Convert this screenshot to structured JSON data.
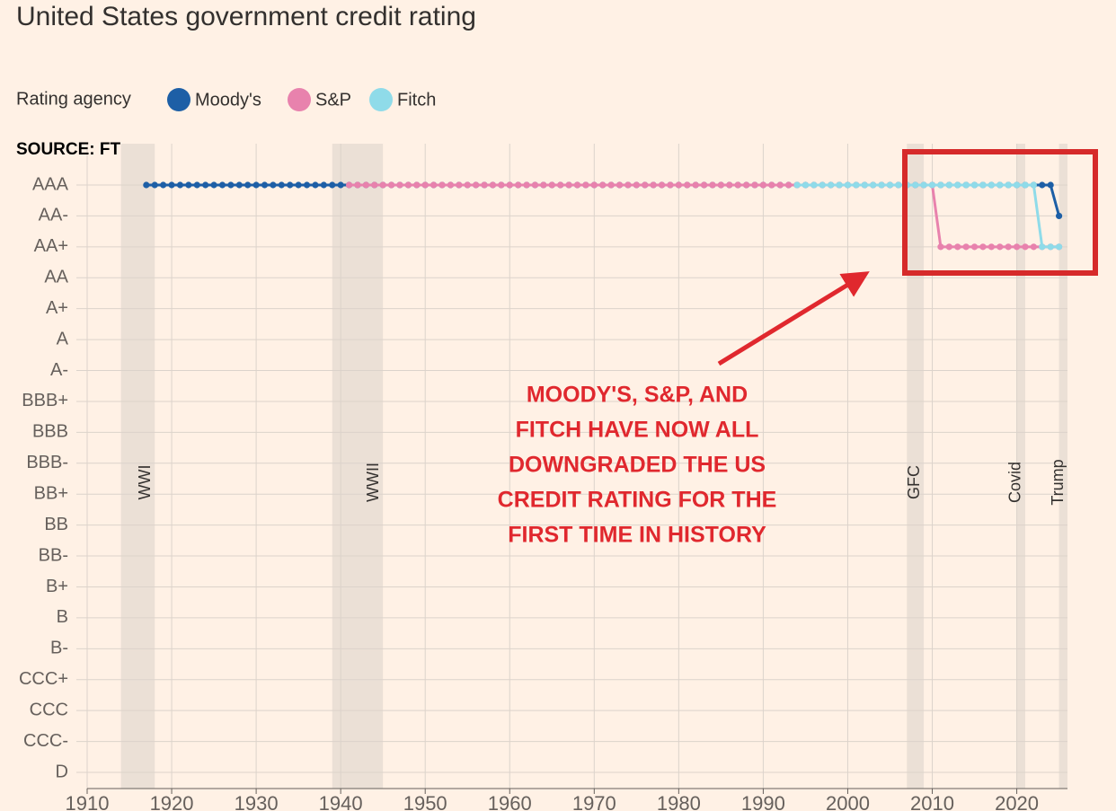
{
  "chart_data": {
    "type": "line",
    "title": "United States government credit rating",
    "legend_title": "Rating agency",
    "source": "SOURCE: FT",
    "ycategories": [
      "AAA",
      "AA-",
      "AA+",
      "AA",
      "A+",
      "A",
      "A-",
      "BBB+",
      "BBB",
      "BBB-",
      "BB+",
      "BB",
      "BB-",
      "B+",
      "B",
      "B-",
      "CCC+",
      "CCC",
      "CCC-",
      "D"
    ],
    "xlim": [
      1910,
      2026
    ],
    "xticks": [
      1910,
      1920,
      1930,
      1940,
      1950,
      1960,
      1970,
      1980,
      1990,
      2000,
      2010,
      2020
    ],
    "grid": true,
    "events": [
      {
        "label": "WWI",
        "start": 1914,
        "end": 1918
      },
      {
        "label": "WWII",
        "start": 1939,
        "end": 1945
      },
      {
        "label": "GFC",
        "start": 2007,
        "end": 2009
      },
      {
        "label": "Covid",
        "start": 2020,
        "end": 2021
      },
      {
        "label": "Trump",
        "start": 2025,
        "end": 2026
      }
    ],
    "annotation": [
      "MOODY'S, S&P, AND",
      "FITCH HAVE NOW ALL",
      "DOWNGRADED THE US",
      "CREDIT RATING FOR THE",
      "FIRST TIME IN HISTORY"
    ],
    "x": [
      1917,
      1918,
      1919,
      1920,
      1921,
      1922,
      1923,
      1924,
      1925,
      1926,
      1927,
      1928,
      1929,
      1930,
      1931,
      1932,
      1933,
      1934,
      1935,
      1936,
      1937,
      1938,
      1939,
      1940,
      1941,
      1942,
      1943,
      1944,
      1945,
      1946,
      1947,
      1948,
      1949,
      1950,
      1951,
      1952,
      1953,
      1954,
      1955,
      1956,
      1957,
      1958,
      1959,
      1960,
      1961,
      1962,
      1963,
      1964,
      1965,
      1966,
      1967,
      1968,
      1969,
      1970,
      1971,
      1972,
      1973,
      1974,
      1975,
      1976,
      1977,
      1978,
      1979,
      1980,
      1981,
      1982,
      1983,
      1984,
      1985,
      1986,
      1987,
      1988,
      1989,
      1990,
      1991,
      1992,
      1993,
      1994,
      1995,
      1996,
      1997,
      1998,
      1999,
      2000,
      2001,
      2002,
      2003,
      2004,
      2005,
      2006,
      2007,
      2008,
      2009,
      2010,
      2011,
      2012,
      2013,
      2014,
      2015,
      2016,
      2017,
      2018,
      2019,
      2020,
      2021,
      2022,
      2023,
      2024,
      2025
    ],
    "series": [
      {
        "name": "Moody's",
        "color": "#1d5fa6",
        "values": [
          "AAA",
          "AAA",
          "AAA",
          "AAA",
          "AAA",
          "AAA",
          "AAA",
          "AAA",
          "AAA",
          "AAA",
          "AAA",
          "AAA",
          "AAA",
          "AAA",
          "AAA",
          "AAA",
          "AAA",
          "AAA",
          "AAA",
          "AAA",
          "AAA",
          "AAA",
          "AAA",
          "AAA",
          "AAA",
          "AAA",
          "AAA",
          "AAA",
          "AAA",
          "AAA",
          "AAA",
          "AAA",
          "AAA",
          "AAA",
          "AAA",
          "AAA",
          "AAA",
          "AAA",
          "AAA",
          "AAA",
          "AAA",
          "AAA",
          "AAA",
          "AAA",
          "AAA",
          "AAA",
          "AAA",
          "AAA",
          "AAA",
          "AAA",
          "AAA",
          "AAA",
          "AAA",
          "AAA",
          "AAA",
          "AAA",
          "AAA",
          "AAA",
          "AAA",
          "AAA",
          "AAA",
          "AAA",
          "AAA",
          "AAA",
          "AAA",
          "AAA",
          "AAA",
          "AAA",
          "AAA",
          "AAA",
          "AAA",
          "AAA",
          "AAA",
          "AAA",
          "AAA",
          "AAA",
          "AAA",
          "AAA",
          "AAA",
          "AAA",
          "AAA",
          "AAA",
          "AAA",
          "AAA",
          "AAA",
          "AAA",
          "AAA",
          "AAA",
          "AAA",
          "AAA",
          "AAA",
          "AAA",
          "AAA",
          "AAA",
          "AAA",
          "AAA",
          "AAA",
          "AAA",
          "AAA",
          "AAA",
          "AAA",
          "AAA",
          "AAA",
          "AAA",
          "AAA",
          "AAA",
          "AAA",
          "AAA",
          "AA-"
        ]
      },
      {
        "name": "S&P",
        "color": "#e882ad",
        "values": [
          null,
          null,
          null,
          null,
          null,
          null,
          null,
          null,
          null,
          null,
          null,
          null,
          null,
          null,
          null,
          null,
          null,
          null,
          null,
          null,
          null,
          null,
          null,
          null,
          "AAA",
          "AAA",
          "AAA",
          "AAA",
          "AAA",
          "AAA",
          "AAA",
          "AAA",
          "AAA",
          "AAA",
          "AAA",
          "AAA",
          "AAA",
          "AAA",
          "AAA",
          "AAA",
          "AAA",
          "AAA",
          "AAA",
          "AAA",
          "AAA",
          "AAA",
          "AAA",
          "AAA",
          "AAA",
          "AAA",
          "AAA",
          "AAA",
          "AAA",
          "AAA",
          "AAA",
          "AAA",
          "AAA",
          "AAA",
          "AAA",
          "AAA",
          "AAA",
          "AAA",
          "AAA",
          "AAA",
          "AAA",
          "AAA",
          "AAA",
          "AAA",
          "AAA",
          "AAA",
          "AAA",
          "AAA",
          "AAA",
          "AAA",
          "AAA",
          "AAA",
          "AAA",
          "AAA",
          "AAA",
          "AAA",
          "AAA",
          "AAA",
          "AAA",
          "AAA",
          "AAA",
          "AAA",
          "AAA",
          "AAA",
          "AAA",
          "AAA",
          "AAA",
          "AAA",
          "AAA",
          "AAA",
          "AA+",
          "AA+",
          "AA+",
          "AA+",
          "AA+",
          "AA+",
          "AA+",
          "AA+",
          "AA+",
          "AA+",
          "AA+",
          "AA+",
          "AA+",
          "AA+",
          "AA+"
        ]
      },
      {
        "name": "Fitch",
        "color": "#8fdbe9",
        "values": [
          null,
          null,
          null,
          null,
          null,
          null,
          null,
          null,
          null,
          null,
          null,
          null,
          null,
          null,
          null,
          null,
          null,
          null,
          null,
          null,
          null,
          null,
          null,
          null,
          null,
          null,
          null,
          null,
          null,
          null,
          null,
          null,
          null,
          null,
          null,
          null,
          null,
          null,
          null,
          null,
          null,
          null,
          null,
          null,
          null,
          null,
          null,
          null,
          null,
          null,
          null,
          null,
          null,
          null,
          null,
          null,
          null,
          null,
          null,
          null,
          null,
          null,
          null,
          null,
          null,
          null,
          null,
          null,
          null,
          null,
          null,
          null,
          null,
          null,
          null,
          null,
          null,
          "AAA",
          "AAA",
          "AAA",
          "AAA",
          "AAA",
          "AAA",
          "AAA",
          "AAA",
          "AAA",
          "AAA",
          "AAA",
          "AAA",
          "AAA",
          "AAA",
          "AAA",
          "AAA",
          "AAA",
          "AAA",
          "AAA",
          "AAA",
          "AAA",
          "AAA",
          "AAA",
          "AAA",
          "AAA",
          "AAA",
          "AAA",
          "AAA",
          "AAA",
          "AA+",
          "AA+",
          "AA+"
        ]
      }
    ]
  }
}
